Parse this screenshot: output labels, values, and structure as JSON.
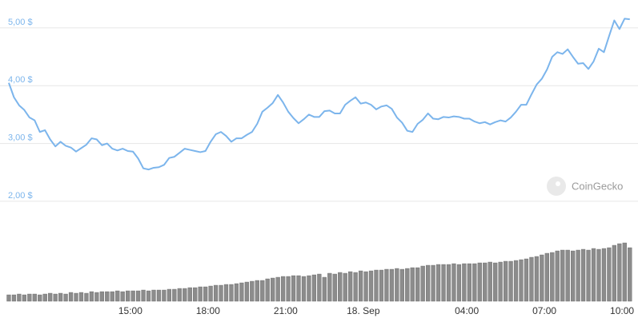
{
  "chart_data": {
    "type": "line",
    "watermark": "CoinGecko",
    "x": [
      10.3,
      10.5,
      10.7,
      10.9,
      11.1,
      11.3,
      11.5,
      11.7,
      11.9,
      12.1,
      12.3,
      12.5,
      12.7,
      12.9,
      13.1,
      13.3,
      13.5,
      13.7,
      13.9,
      14.1,
      14.3,
      14.5,
      14.7,
      14.9,
      15.1,
      15.3,
      15.5,
      15.7,
      15.9,
      16.1,
      16.3,
      16.5,
      16.7,
      16.9,
      17.1,
      17.3,
      17.5,
      17.7,
      17.9,
      18.1,
      18.3,
      18.5,
      18.7,
      18.9,
      19.1,
      19.3,
      19.5,
      19.7,
      19.9,
      20.1,
      20.3,
      20.5,
      20.7,
      20.9,
      21.1,
      21.3,
      21.5,
      21.7,
      21.9,
      22.1,
      22.3,
      22.5,
      22.7,
      22.9,
      23.1,
      23.3,
      23.5,
      23.7,
      23.9,
      24.1,
      24.3,
      24.5,
      24.7,
      24.9,
      25.1,
      25.3,
      25.5,
      25.7,
      25.9,
      26.1,
      26.3,
      26.5,
      26.7,
      26.9,
      27.1,
      27.3,
      27.5,
      27.7,
      27.9,
      28.1,
      28.3,
      28.5,
      28.7,
      28.9,
      29.1,
      29.3,
      29.5,
      29.7,
      29.9,
      30.1,
      30.3,
      30.5,
      30.7,
      30.9,
      31.1,
      31.3,
      31.5,
      31.7,
      31.9,
      32.1,
      32.3,
      32.5,
      32.7,
      32.9,
      33.1,
      33.3,
      33.5,
      33.7,
      33.9,
      34.1,
      34.3
    ],
    "series": [
      {
        "type": "line",
        "color": "#7cb5ec",
        "values": [
          4.05,
          3.8,
          3.66,
          3.58,
          3.45,
          3.4,
          3.2,
          3.23,
          3.07,
          2.95,
          3.03,
          2.96,
          2.93,
          2.86,
          2.92,
          2.98,
          3.09,
          3.07,
          2.97,
          3.0,
          2.91,
          2.88,
          2.91,
          2.87,
          2.86,
          2.74,
          2.57,
          2.55,
          2.58,
          2.59,
          2.63,
          2.75,
          2.77,
          2.84,
          2.91,
          2.89,
          2.87,
          2.85,
          2.87,
          3.03,
          3.16,
          3.2,
          3.13,
          3.03,
          3.09,
          3.09,
          3.15,
          3.2,
          3.34,
          3.55,
          3.62,
          3.7,
          3.84,
          3.71,
          3.55,
          3.44,
          3.35,
          3.42,
          3.5,
          3.46,
          3.46,
          3.56,
          3.57,
          3.52,
          3.52,
          3.67,
          3.74,
          3.8,
          3.69,
          3.71,
          3.67,
          3.59,
          3.64,
          3.66,
          3.6,
          3.45,
          3.36,
          3.22,
          3.2,
          3.34,
          3.41,
          3.52,
          3.43,
          3.42,
          3.46,
          3.45,
          3.47,
          3.46,
          3.43,
          3.43,
          3.38,
          3.35,
          3.37,
          3.33,
          3.37,
          3.4,
          3.38,
          3.45,
          3.55,
          3.67,
          3.67,
          3.85,
          4.02,
          4.12,
          4.28,
          4.5,
          4.58,
          4.55,
          4.63,
          4.5,
          4.38,
          4.39,
          4.29,
          4.42,
          4.64,
          4.58,
          4.86,
          5.13,
          4.98,
          5.16,
          5.15
        ]
      },
      {
        "type": "bar",
        "axis": "y2",
        "color": "#8c8c8c",
        "values": [
          8,
          8,
          9,
          8,
          9,
          9,
          8,
          9,
          10,
          9,
          10,
          9,
          11,
          10,
          11,
          10,
          12,
          11,
          12,
          12,
          12,
          13,
          12,
          13,
          13,
          13,
          14,
          13,
          14,
          14,
          14,
          15,
          15,
          16,
          16,
          17,
          17,
          18,
          18,
          19,
          20,
          20,
          21,
          21,
          22,
          23,
          24,
          25,
          26,
          26,
          28,
          29,
          30,
          31,
          31,
          32,
          32,
          31,
          32,
          33,
          34,
          30,
          35,
          34,
          36,
          35,
          37,
          36,
          38,
          37,
          38,
          39,
          39,
          40,
          40,
          41,
          40,
          41,
          42,
          42,
          44,
          45,
          45,
          46,
          46,
          46,
          47,
          46,
          47,
          47,
          47,
          48,
          48,
          49,
          48,
          49,
          50,
          50,
          51,
          52,
          53,
          55,
          56,
          58,
          60,
          61,
          63,
          64,
          64,
          63,
          64,
          65,
          64,
          66,
          65,
          66,
          67,
          70,
          72,
          73,
          67
        ]
      }
    ],
    "xlim": [
      10.27,
      34.4
    ],
    "xticks": [
      {
        "value": 15,
        "label": "15:00"
      },
      {
        "value": 18,
        "label": "18:00"
      },
      {
        "value": 21,
        "label": "21:00"
      },
      {
        "value": 24,
        "label": "18. Sep"
      },
      {
        "value": 28,
        "label": "04:00"
      },
      {
        "value": 31,
        "label": "07:00"
      },
      {
        "value": 34,
        "label": "10:00"
      }
    ],
    "ylim": [
      1.75,
      5.4
    ],
    "yticks": [
      {
        "value": 2,
        "label": "2,00 $"
      },
      {
        "value": 3,
        "label": "3,00 $"
      },
      {
        "value": 4,
        "label": "4,00 $"
      },
      {
        "value": 5,
        "label": "5,00 $"
      }
    ],
    "y2lim": [
      0,
      80
    ],
    "grid": true
  }
}
